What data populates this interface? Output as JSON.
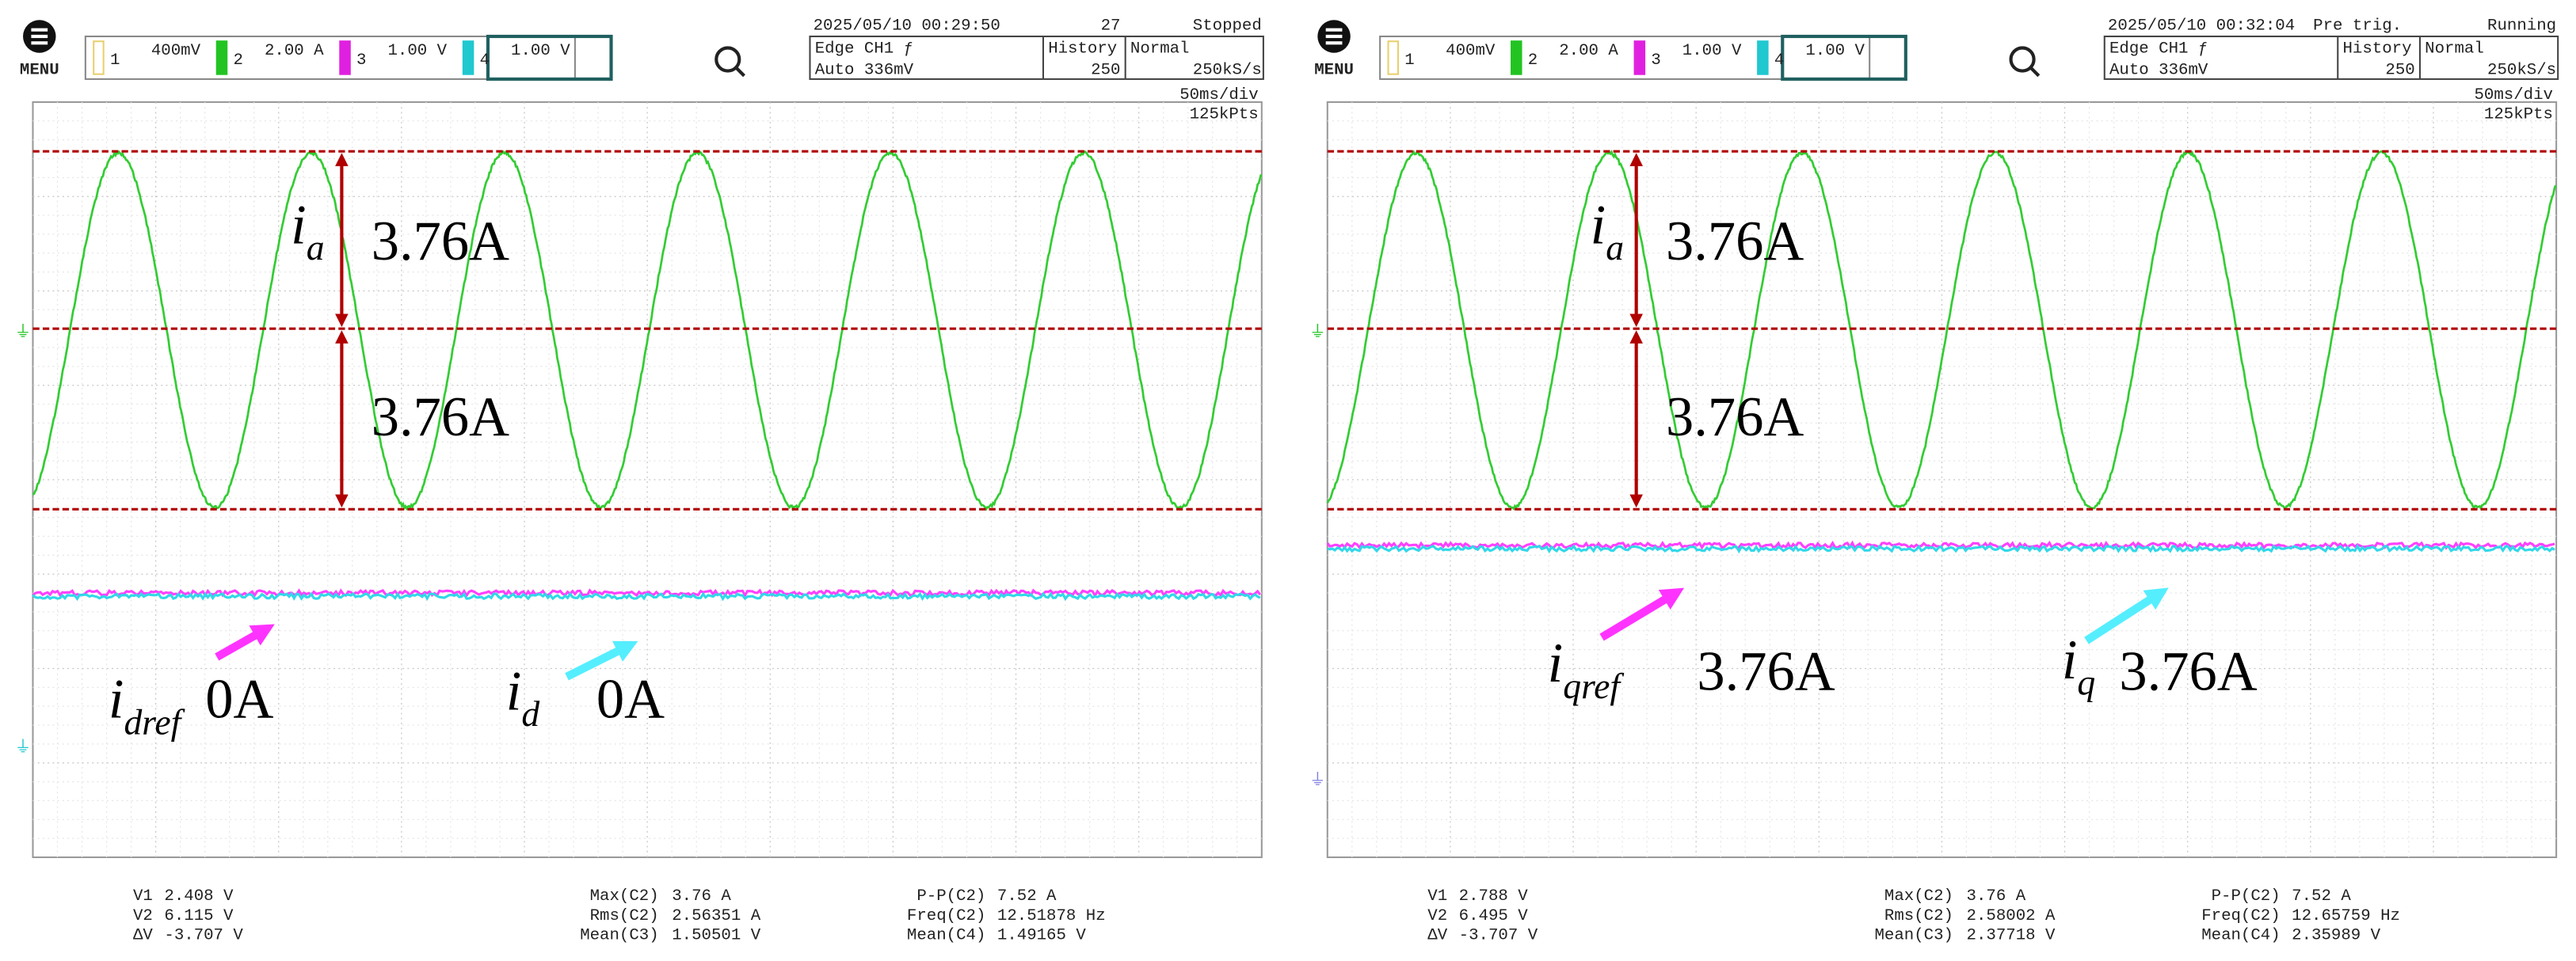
{
  "panels": [
    {
      "menu": "MENU",
      "channels": [
        {
          "num": "1",
          "scale": "400mV"
        },
        {
          "num": "2",
          "scale": "2.00 A"
        },
        {
          "num": "3",
          "scale": "1.00 V"
        },
        {
          "num": "4",
          "scale": "1.00 V"
        }
      ],
      "timestamp": "2025/05/10 00:29:50",
      "note": "27",
      "status": "Stopped",
      "trigger": "Edge CH1 ƒ",
      "trigger_level": "Auto 336mV",
      "history_label": "History",
      "history": "250",
      "mode": "Normal",
      "rate": "250kS/s",
      "timebase": "50ms/div",
      "points": "125kPts",
      "annotations": {
        "top": {
          "symbol": "i",
          "sub": "a"
        },
        "upper": "3.76A",
        "lower": "3.76A",
        "ref": {
          "symbol": "i",
          "sub": "dref",
          "value": "0A"
        },
        "meas": {
          "symbol": "i",
          "sub": "d",
          "value": "0A"
        }
      },
      "measurements": [
        [
          {
            "label": "V1",
            "value": "2.408 V"
          },
          {
            "label": "V2",
            "value": "6.115 V"
          },
          {
            "label": "ΔV",
            "value": "-3.707 V"
          }
        ],
        [
          {
            "label": "Max(C2)",
            "value": "3.76 A"
          },
          {
            "label": "Rms(C2)",
            "value": "2.56351 A"
          },
          {
            "label": "Mean(C3)",
            "value": "1.50501 V"
          }
        ],
        [
          {
            "label": "P-P(C2)",
            "value": "7.52 A"
          },
          {
            "label": "Freq(C2)",
            "value": "12.51878 Hz"
          },
          {
            "label": "Mean(C4)",
            "value": "1.49165 V"
          }
        ]
      ]
    },
    {
      "menu": "MENU",
      "channels": [
        {
          "num": "1",
          "scale": "400mV"
        },
        {
          "num": "2",
          "scale": "2.00 A"
        },
        {
          "num": "3",
          "scale": "1.00 V"
        },
        {
          "num": "4",
          "scale": "1.00 V"
        }
      ],
      "timestamp": "2025/05/10 00:32:04",
      "note": "Pre trig.",
      "status": "Running",
      "trigger": "Edge CH1 ƒ",
      "trigger_level": "Auto 336mV",
      "history_label": "History",
      "history": "250",
      "mode": "Normal",
      "rate": "250kS/s",
      "timebase": "50ms/div",
      "points": "125kPts",
      "annotations": {
        "top": {
          "symbol": "i",
          "sub": "a"
        },
        "upper": "3.76A",
        "lower": "3.76A",
        "ref": {
          "symbol": "i",
          "sub": "qref",
          "value": "3.76A"
        },
        "meas": {
          "symbol": "i",
          "sub": "q",
          "value": "3.76A"
        }
      },
      "measurements": [
        [
          {
            "label": "V1",
            "value": "2.788 V"
          },
          {
            "label": "V2",
            "value": "6.495 V"
          },
          {
            "label": "ΔV",
            "value": "-3.707 V"
          }
        ],
        [
          {
            "label": "Max(C2)",
            "value": "3.76 A"
          },
          {
            "label": "Rms(C2)",
            "value": "2.58002 A"
          },
          {
            "label": "Mean(C3)",
            "value": "2.37718 V"
          }
        ],
        [
          {
            "label": "P-P(C2)",
            "value": "7.52 A"
          },
          {
            "label": "Freq(C2)",
            "value": "12.65759 Hz"
          },
          {
            "label": "Mean(C4)",
            "value": "2.35989 V"
          }
        ]
      ]
    }
  ]
}
